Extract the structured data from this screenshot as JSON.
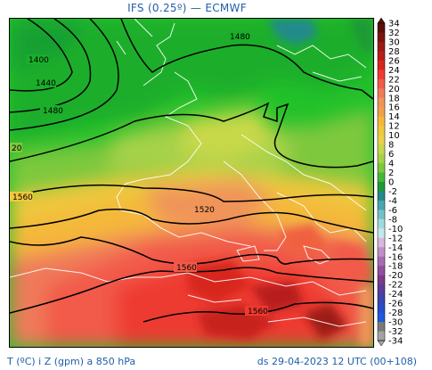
{
  "title": "IFS (0.25º) — ECMWF",
  "footer": {
    "left": "T (ºC) i Z (gpm) a 850 hPa",
    "right": "ds 29-04-2023 12 UTC (00+108)"
  },
  "contour_labels": [
    "1480",
    "1400",
    "1440",
    "1480",
    "20",
    "1560",
    "1520",
    "1560",
    "1560"
  ],
  "colorbar": {
    "labels": [
      "34",
      "32",
      "30",
      "28",
      "26",
      "24",
      "22",
      "20",
      "18",
      "16",
      "14",
      "12",
      "10",
      "8",
      "6",
      "4",
      "2",
      "0",
      "-2",
      "-4",
      "-6",
      "-8",
      "-10",
      "-12",
      "-14",
      "-16",
      "-18",
      "-20",
      "-22",
      "-24",
      "-26",
      "-28",
      "-30",
      "-32",
      "-34"
    ],
    "colors": [
      "#5a1008",
      "#7a1410",
      "#9c1a14",
      "#b81e1a",
      "#d8261f",
      "#ee3a30",
      "#f25a48",
      "#f07a5a",
      "#f0945a",
      "#f0a04a",
      "#f4b83a",
      "#f0c83c",
      "#e8d24a",
      "#c8d84a",
      "#a6d24a",
      "#7ec83c",
      "#44b83a",
      "#1e9a34",
      "#248a8c",
      "#4aa6b0",
      "#74c2c8",
      "#a2dadc",
      "#c6e8ea",
      "#d8b8dc",
      "#c090c8",
      "#a86cb4",
      "#90509e",
      "#7a3a88",
      "#5c3c9a",
      "#3c44b0",
      "#2a4cc8",
      "#1e5ae0",
      "#7a7a7a",
      "#a4a4a4"
    ]
  }
}
